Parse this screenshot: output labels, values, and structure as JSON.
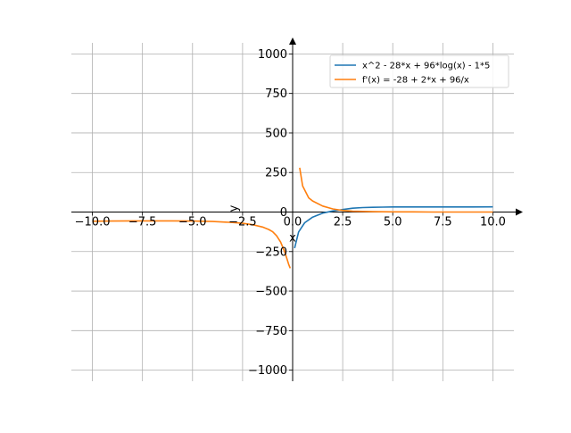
{
  "chart_data": {
    "type": "line",
    "title": "",
    "xlabel": "x",
    "ylabel": "y",
    "xlim": [
      -11.05,
      11.05
    ],
    "ylim": [
      -1070,
      1070
    ],
    "grid": true,
    "legend_position": "top-right",
    "x_ticks": [
      -10,
      -7.5,
      -5,
      -2.5,
      0,
      2.5,
      5,
      7.5,
      10
    ],
    "x_tick_labels": [
      "−10.0",
      "−7.5",
      "−5.0",
      "−2.5",
      "0.0",
      "2.5",
      "5.0",
      "7.5",
      "10.0"
    ],
    "y_ticks": [
      -1000,
      -750,
      -500,
      -250,
      0,
      250,
      500,
      750,
      1000
    ],
    "y_tick_labels": [
      "−1000",
      "−750",
      "−500",
      "−250",
      "0",
      "250",
      "500",
      "750",
      "1000"
    ],
    "series": [
      {
        "name": "x^2 - 28*x + 96*log(x) - 1*5",
        "color": "#1f77b4",
        "x": [
          0.1,
          0.3,
          0.6,
          1.0,
          1.5,
          2.0,
          2.5,
          3.0,
          3.5,
          4.0,
          4.5,
          5.0,
          5.5,
          6.0,
          7.0,
          8.0,
          9.0,
          10.0
        ],
        "y": [
          -228,
          -126,
          -68,
          -32,
          -7,
          7,
          16,
          24,
          28,
          30,
          31,
          32,
          32,
          32,
          32,
          32,
          32,
          33
        ]
      },
      {
        "name": "f'(x) = -28 + 2*x + 96/x",
        "color": "#ff7f0e",
        "segments": [
          {
            "x": [
              -10.0,
              -9.0,
              -8.0,
              -7.0,
              -6.0,
              -5.0,
              -4.0,
              -3.0,
              -2.5,
              -2.0,
              -1.5,
              -1.2,
              -1.0,
              -0.8,
              -0.6,
              -0.4,
              -0.3,
              -0.2,
              -0.12
            ],
            "y": [
              -58,
              -57,
              -56,
              -56,
              -56,
              -57,
              -60,
              -66,
              -71,
              -80,
              -95,
              -110,
              -125,
              -150,
              -190,
              -250,
              -290,
              -330,
              -355
            ]
          },
          {
            "x": [
              0.35,
              0.5,
              0.8,
              1.0,
              1.5,
              2.0,
              2.5,
              3.0,
              4.0,
              5.0,
              6.0,
              7.0,
              8.0,
              9.0,
              10.0
            ],
            "y": [
              280,
              165,
              90,
              70,
              38,
              20,
              10,
              5,
              2,
              1,
              1,
              0,
              0,
              0,
              0
            ]
          }
        ]
      }
    ]
  }
}
